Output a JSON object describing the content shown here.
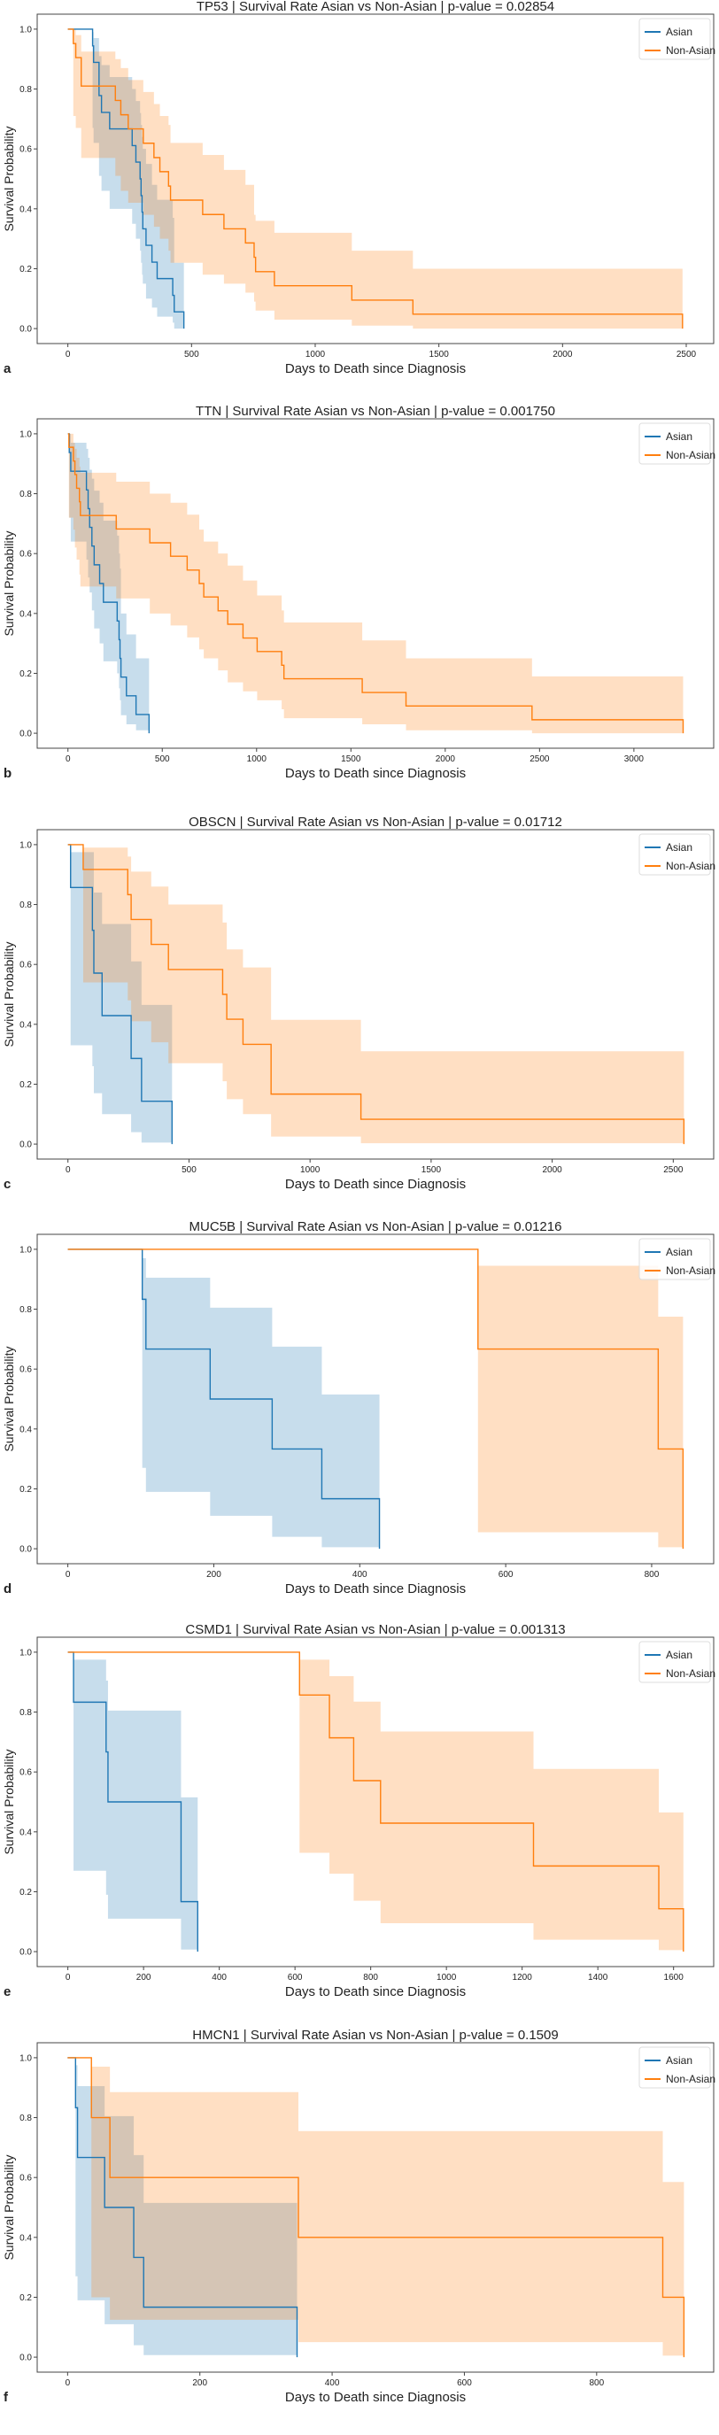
{
  "colors": {
    "asian": "#1f77b4",
    "non_asian": "#ff7f0e"
  },
  "chart_data": [
    {
      "type": "line",
      "step": "post",
      "panel_label": "a",
      "title": "TP53 | Survival Rate Asian vs Non-Asian | p-value = 0.02854",
      "xlabel": "Days to Death since Diagnosis",
      "ylabel": "Survival Probability",
      "xlim": [
        -124,
        2611
      ],
      "ylim": [
        -0.05,
        1.05
      ],
      "xticks": [
        0,
        500,
        1000,
        1500,
        2000,
        2500
      ],
      "yticks": [
        "0.0",
        "0.2",
        "0.4",
        "0.6",
        "0.8",
        "1.0"
      ],
      "legend": "top-right",
      "grid": false,
      "series": [
        {
          "name": "Asian",
          "x": [
            0,
            100,
            104,
            126,
            136,
            169,
            260,
            275,
            292,
            296,
            300,
            303,
            316,
            340,
            361,
            424,
            430,
            469
          ],
          "y": [
            1,
            0.944,
            0.889,
            0.778,
            0.722,
            0.667,
            0.611,
            0.556,
            0.5,
            0.444,
            0.389,
            0.333,
            0.278,
            0.222,
            0.167,
            0.111,
            0.056,
            0
          ],
          "ci_upper": [
            1,
            0.99,
            0.97,
            0.91,
            0.88,
            0.84,
            0.8,
            0.76,
            0.72,
            0.68,
            0.64,
            0.6,
            0.55,
            0.48,
            0.43,
            0.37,
            0.22,
            0
          ],
          "ci_lower": [
            1,
            0.67,
            0.62,
            0.51,
            0.46,
            0.4,
            0.35,
            0.3,
            0.26,
            0.22,
            0.18,
            0.15,
            0.1,
            0.07,
            0.04,
            0.02,
            0.0,
            0
          ]
        },
        {
          "name": "Non-Asian",
          "x": [
            0,
            22,
            32,
            54,
            192,
            214,
            244,
            305,
            348,
            372,
            407,
            415,
            545,
            631,
            718,
            753,
            759,
            835,
            1148,
            1395,
            2485
          ],
          "y": [
            1,
            0.952,
            0.905,
            0.81,
            0.762,
            0.714,
            0.667,
            0.619,
            0.571,
            0.524,
            0.476,
            0.429,
            0.381,
            0.333,
            0.286,
            0.238,
            0.19,
            0.143,
            0.095,
            0.048,
            0
          ],
          "ci_upper": [
            1,
            1,
            0.98,
            0.925,
            0.9,
            0.87,
            0.83,
            0.79,
            0.75,
            0.71,
            0.68,
            0.62,
            0.58,
            0.53,
            0.48,
            0.38,
            0.36,
            0.32,
            0.26,
            0.2,
            0
          ],
          "ci_lower": [
            1,
            0.71,
            0.67,
            0.57,
            0.51,
            0.46,
            0.42,
            0.38,
            0.34,
            0.3,
            0.26,
            0.22,
            0.18,
            0.15,
            0.12,
            0.09,
            0.06,
            0.03,
            0.01,
            0.0,
            0
          ]
        }
      ]
    },
    {
      "type": "line",
      "step": "post",
      "panel_label": "b",
      "title": "TTN | Survival Rate Asian vs Non-Asian | p-value = 0.001750",
      "xlabel": "Days to Death since Diagnosis",
      "ylabel": "Survival Probability",
      "xlim": [
        -163,
        3423
      ],
      "ylim": [
        -0.05,
        1.05
      ],
      "xticks": [
        0,
        500,
        1000,
        1500,
        2000,
        2500,
        3000
      ],
      "yticks": [
        "0.0",
        "0.2",
        "0.4",
        "0.6",
        "0.8",
        "1.0"
      ],
      "legend": "top-right",
      "grid": false,
      "series": [
        {
          "name": "Asian",
          "x": [
            0,
            7,
            15,
            98,
            107,
            115,
            127,
            139,
            168,
            188,
            261,
            271,
            276,
            281,
            310,
            361,
            430
          ],
          "y": [
            1,
            0.9375,
            0.875,
            0.8125,
            0.75,
            0.6875,
            0.625,
            0.5625,
            0.5,
            0.4375,
            0.375,
            0.3125,
            0.25,
            0.1875,
            0.125,
            0.0625,
            0
          ],
          "ci_upper": [
            1,
            1,
            0.97,
            0.95,
            0.92,
            0.88,
            0.85,
            0.81,
            0.77,
            0.71,
            0.66,
            0.6,
            0.55,
            0.4,
            0.33,
            0.25,
            0
          ],
          "ci_lower": [
            1,
            0.72,
            0.64,
            0.58,
            0.52,
            0.47,
            0.41,
            0.35,
            0.3,
            0.24,
            0.2,
            0.15,
            0.11,
            0.06,
            0.03,
            0.01,
            0
          ]
        },
        {
          "name": "Non-Asian",
          "x": [
            0,
            5,
            29,
            37,
            46,
            61,
            66,
            256,
            434,
            544,
            632,
            696,
            720,
            796,
            847,
            928,
            1003,
            1133,
            1145,
            1560,
            1792,
            2460,
            3261
          ],
          "y": [
            1,
            0.955,
            0.909,
            0.864,
            0.818,
            0.773,
            0.727,
            0.682,
            0.636,
            0.591,
            0.545,
            0.5,
            0.455,
            0.409,
            0.364,
            0.318,
            0.273,
            0.227,
            0.182,
            0.136,
            0.091,
            0.045,
            0
          ],
          "ci_upper": [
            1,
            1,
            0.97,
            0.95,
            0.92,
            0.89,
            0.87,
            0.84,
            0.8,
            0.77,
            0.73,
            0.68,
            0.64,
            0.6,
            0.56,
            0.51,
            0.46,
            0.41,
            0.37,
            0.31,
            0.25,
            0.19,
            0
          ],
          "ci_lower": [
            1,
            0.72,
            0.68,
            0.62,
            0.58,
            0.53,
            0.49,
            0.45,
            0.4,
            0.36,
            0.32,
            0.28,
            0.25,
            0.21,
            0.17,
            0.14,
            0.11,
            0.08,
            0.05,
            0.03,
            0.01,
            0.0,
            0
          ]
        }
      ]
    },
    {
      "type": "line",
      "step": "post",
      "panel_label": "c",
      "title": "OBSCN | Survival Rate Asian vs Non-Asian | p-value = 0.01712",
      "xlabel": "Days to Death since Diagnosis",
      "ylabel": "Survival Probability",
      "xlim": [
        -127,
        2667
      ],
      "ylim": [
        -0.05,
        1.05
      ],
      "xticks": [
        0,
        500,
        1000,
        1500,
        2000,
        2500
      ],
      "yticks": [
        "0.0",
        "0.2",
        "0.4",
        "0.6",
        "0.8",
        "1.0"
      ],
      "legend": "top-right",
      "grid": false,
      "series": [
        {
          "name": "Asian",
          "x": [
            0,
            11,
            101,
            107,
            141,
            261,
            304,
            430
          ],
          "y": [
            1,
            0.857,
            0.714,
            0.571,
            0.429,
            0.286,
            0.143,
            0
          ],
          "ci_upper": [
            1,
            0.975,
            0.975,
            0.84,
            0.735,
            0.61,
            0.465,
            0
          ],
          "ci_lower": [
            1,
            0.33,
            0.26,
            0.17,
            0.1,
            0.04,
            0.005,
            0
          ]
        },
        {
          "name": "Non-Asian",
          "x": [
            0,
            63,
            247,
            261,
            344,
            415,
            639,
            656,
            723,
            839,
            1210,
            2544
          ],
          "y": [
            1,
            0.917,
            0.833,
            0.75,
            0.667,
            0.583,
            0.5,
            0.417,
            0.333,
            0.167,
            0.083,
            0
          ],
          "ci_upper": [
            1,
            0.99,
            0.96,
            0.91,
            0.86,
            0.8,
            0.74,
            0.65,
            0.59,
            0.415,
            0.31,
            0
          ],
          "ci_lower": [
            1,
            0.54,
            0.48,
            0.41,
            0.34,
            0.27,
            0.21,
            0.15,
            0.1,
            0.025,
            0.003,
            0
          ]
        }
      ]
    },
    {
      "type": "line",
      "step": "post",
      "panel_label": "d",
      "title": "MUC5B | Survival Rate Asian vs Non-Asian | p-value = 0.01216",
      "xlabel": "Days to Death since Diagnosis",
      "ylabel": "Survival Probability",
      "xlim": [
        -42,
        885
      ],
      "ylim": [
        -0.05,
        1.05
      ],
      "xticks": [
        0,
        200,
        400,
        600,
        800
      ],
      "yticks": [
        "0.0",
        "0.2",
        "0.4",
        "0.6",
        "0.8",
        "1.0"
      ],
      "legend": "top-right",
      "grid": false,
      "series": [
        {
          "name": "Asian",
          "x": [
            0,
            102,
            107,
            195,
            280,
            348,
            427
          ],
          "y": [
            1,
            0.833,
            0.667,
            0.5,
            0.333,
            0.167,
            0
          ],
          "ci_upper": [
            1,
            0.97,
            0.905,
            0.805,
            0.675,
            0.515,
            0
          ],
          "ci_lower": [
            1,
            0.27,
            0.19,
            0.11,
            0.04,
            0.005,
            0
          ]
        },
        {
          "name": "Non-Asian",
          "x": [
            0,
            562,
            809,
            843
          ],
          "y": [
            1,
            0.667,
            0.333,
            0
          ],
          "ci_upper": [
            1,
            0.945,
            0.775,
            0
          ],
          "ci_lower": [
            1,
            0.055,
            0.005,
            0
          ]
        }
      ]
    },
    {
      "type": "line",
      "step": "post",
      "panel_label": "e",
      "title": "CSMD1 | Survival Rate Asian vs Non-Asian | p-value = 0.001313",
      "xlabel": "Days to Death since Diagnosis",
      "ylabel": "Survival Probability",
      "xlim": [
        -81,
        1706
      ],
      "ylim": [
        -0.05,
        1.05
      ],
      "xticks": [
        0,
        200,
        400,
        600,
        800,
        1000,
        1200,
        1400,
        1600
      ],
      "yticks": [
        "0.0",
        "0.2",
        "0.4",
        "0.6",
        "0.8",
        "1.0"
      ],
      "legend": "top-right",
      "grid": false,
      "series": [
        {
          "name": "Asian",
          "x": [
            0,
            15,
            101,
            106,
            299,
            343
          ],
          "y": [
            1,
            0.833,
            0.667,
            0.5,
            0.167,
            0
          ],
          "ci_upper": [
            1,
            0.975,
            0.905,
            0.805,
            0.515,
            0
          ],
          "ci_lower": [
            1,
            0.27,
            0.19,
            0.11,
            0.007,
            0
          ]
        },
        {
          "name": "Non-Asian",
          "x": [
            0,
            612,
            691,
            755,
            826,
            1230,
            1561,
            1626
          ],
          "y": [
            1,
            0.857,
            0.714,
            0.571,
            0.429,
            0.286,
            0.143,
            0
          ],
          "ci_upper": [
            1,
            0.975,
            0.92,
            0.835,
            0.735,
            0.61,
            0.465,
            0
          ],
          "ci_lower": [
            1,
            0.33,
            0.26,
            0.17,
            0.095,
            0.04,
            0.005,
            0
          ]
        }
      ]
    },
    {
      "type": "line",
      "step": "post",
      "panel_label": "f",
      "title": "HMCN1 | Survival Rate Asian vs Non-Asian | p-value = 0.1509",
      "xlabel": "Days to Death since Diagnosis",
      "ylabel": "Survival Probability",
      "xlim": [
        -46,
        977
      ],
      "ylim": [
        -0.05,
        1.05
      ],
      "xticks": [
        0,
        200,
        400,
        600,
        800
      ],
      "yticks": [
        "0.0",
        "0.2",
        "0.4",
        "0.6",
        "0.8",
        "1.0"
      ],
      "legend": "top-right",
      "grid": false,
      "series": [
        {
          "name": "Asian",
          "x": [
            0,
            12,
            15,
            56,
            100,
            115,
            347
          ],
          "y": [
            1,
            0.833,
            0.667,
            0.5,
            0.333,
            0.167,
            0
          ],
          "ci_upper": [
            1,
            0.975,
            0.905,
            0.805,
            0.675,
            0.515,
            0
          ],
          "ci_lower": [
            1,
            0.27,
            0.19,
            0.11,
            0.04,
            0.007,
            0
          ]
        },
        {
          "name": "Non-Asian",
          "x": [
            0,
            36,
            64,
            349,
            900,
            932
          ],
          "y": [
            1,
            0.8,
            0.6,
            0.4,
            0.2,
            0
          ],
          "ci_upper": [
            1,
            0.97,
            0.885,
            0.755,
            0.585,
            0
          ],
          "ci_lower": [
            1,
            0.2,
            0.125,
            0.05,
            0.005,
            0
          ]
        }
      ]
    }
  ]
}
